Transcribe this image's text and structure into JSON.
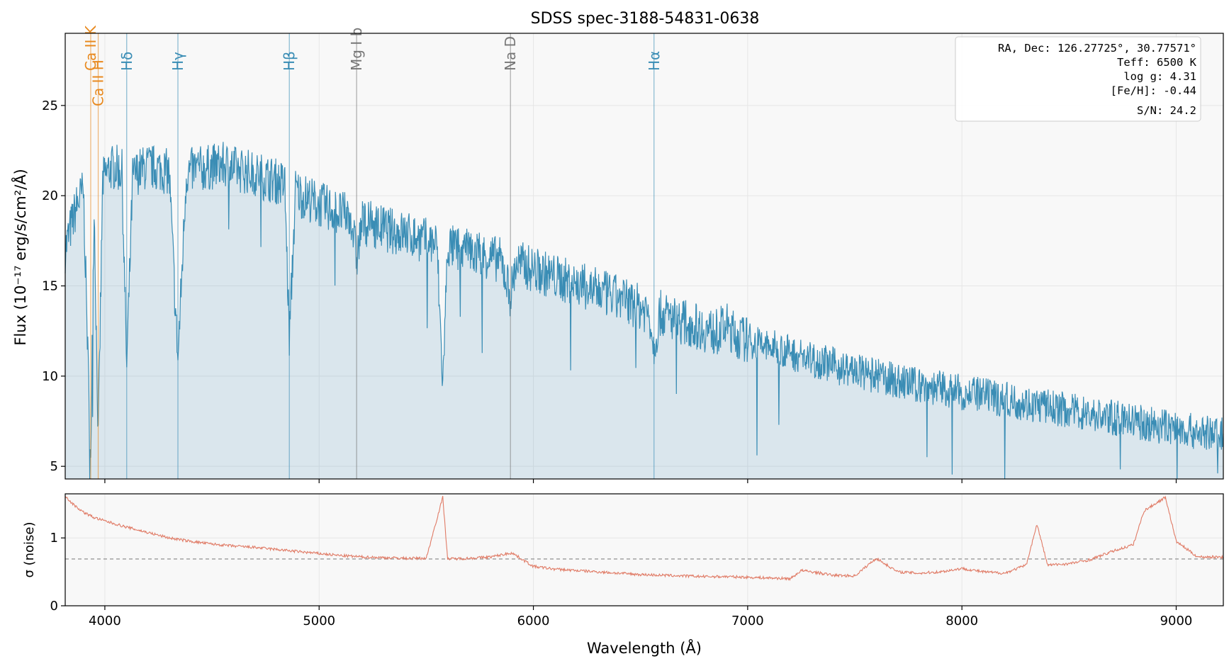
{
  "chart_data": [
    {
      "type": "line",
      "title": "SDSS spec-3188-54831-0638",
      "ylabel": "Flux (10⁻¹⁷ erg/s/cm²/Å)",
      "xlim": [
        3815,
        9220
      ],
      "ylim": [
        4.3,
        29.0
      ],
      "yticks": [
        5,
        10,
        15,
        20,
        25
      ],
      "grid": true,
      "series": [
        {
          "x": [
            3815,
            3840,
            3870,
            3900,
            3934,
            3950,
            3969,
            3990,
            4020,
            4050,
            4080,
            4102,
            4130,
            4160,
            4200,
            4250,
            4300,
            4341,
            4380,
            4420,
            4460,
            4500,
            4550,
            4600,
            4650,
            4700,
            4750,
            4800,
            4840,
            4861,
            4890,
            4920,
            4960,
            5000,
            5050,
            5100,
            5150,
            5175,
            5200,
            5250,
            5300,
            5350,
            5400,
            5450,
            5500,
            5550,
            5577,
            5600,
            5650,
            5700,
            5750,
            5800,
            5850,
            5893,
            5920,
            5960,
            6000,
            6050,
            6100,
            6150,
            6200,
            6250,
            6300,
            6350,
            6400,
            6450,
            6500,
            6540,
            6563,
            6590,
            6650,
            6700,
            6750,
            6800,
            6850,
            6900,
            6950,
            7000,
            7050,
            7100,
            7150,
            7200,
            7250,
            7300,
            7350,
            7400,
            7450,
            7500,
            7550,
            7600,
            7650,
            7700,
            7750,
            7800,
            7850,
            7900,
            7950,
            8000,
            8050,
            8100,
            8150,
            8200,
            8250,
            8300,
            8350,
            8400,
            8450,
            8500,
            8550,
            8600,
            8650,
            8700,
            8750,
            8800,
            8850,
            8900,
            8950,
            9000,
            9050,
            9100,
            9150,
            9200,
            9220
          ],
          "y": [
            17.0,
            18.2,
            19.5,
            20.3,
            5.5,
            19.5,
            6.5,
            20.8,
            21.5,
            21.6,
            21.3,
            10.5,
            21.0,
            21.4,
            21.6,
            21.5,
            21.3,
            10.8,
            21.2,
            21.5,
            21.5,
            21.6,
            21.7,
            21.5,
            21.4,
            21.2,
            21.0,
            20.8,
            20.6,
            12.0,
            20.3,
            20.0,
            19.8,
            19.5,
            19.3,
            19.0,
            18.8,
            16.5,
            18.5,
            18.4,
            18.2,
            18.0,
            17.9,
            17.7,
            17.5,
            17.3,
            9.5,
            17.2,
            17.0,
            16.9,
            16.8,
            16.6,
            16.4,
            14.5,
            16.3,
            16.1,
            15.9,
            15.7,
            15.5,
            15.3,
            15.1,
            14.9,
            14.7,
            14.5,
            14.3,
            14.1,
            13.8,
            13.6,
            11.5,
            13.5,
            13.2,
            13.0,
            12.8,
            12.6,
            12.4,
            12.8,
            12.2,
            12.0,
            11.8,
            11.6,
            11.5,
            11.3,
            11.1,
            10.9,
            10.8,
            10.6,
            10.4,
            10.3,
            10.1,
            10.0,
            9.9,
            9.7,
            9.6,
            9.5,
            9.4,
            9.3,
            9.2,
            9.1,
            9.0,
            8.9,
            8.8,
            8.7,
            8.6,
            8.5,
            8.4,
            8.3,
            8.2,
            8.1,
            8.0,
            7.9,
            7.8,
            7.7,
            7.6,
            7.5,
            7.4,
            7.3,
            7.2,
            7.1,
            7.0,
            6.9,
            6.8,
            6.8,
            6.8
          ]
        }
      ],
      "lines": [
        {
          "label": "Ca II K",
          "x": 3934,
          "group": "caii"
        },
        {
          "label": "Ca II H",
          "x": 3969,
          "group": "caii"
        },
        {
          "label": "Hδ",
          "x": 4102,
          "group": "balmer"
        },
        {
          "label": "Hγ",
          "x": 4341,
          "group": "balmer"
        },
        {
          "label": "Hβ",
          "x": 4861,
          "group": "balmer"
        },
        {
          "label": "Mg I b",
          "x": 5175,
          "group": "metal"
        },
        {
          "label": "Na D",
          "x": 5893,
          "group": "metal"
        },
        {
          "label": "Hα",
          "x": 6563,
          "group": "balmer"
        }
      ],
      "annotation": [
        "RA, Dec: 126.27725°, 30.77571°",
        "Teff: 6500 K",
        "log g: 4.31",
        "[Fe/H]: -0.44",
        "S/N: 24.2"
      ],
      "annotation_placement": "top-right"
    },
    {
      "type": "line",
      "xlabel": "Wavelength (Å)",
      "ylabel": "σ (noise)",
      "xlim": [
        3815,
        9220
      ],
      "ylim": [
        0,
        1.65
      ],
      "yticks": [
        0,
        1
      ],
      "xticks": [
        4000,
        5000,
        6000,
        7000,
        8000,
        9000
      ],
      "reference_line": 0.69,
      "grid": true,
      "series": [
        {
          "x": [
            3815,
            3850,
            3900,
            3950,
            4000,
            4100,
            4200,
            4300,
            4400,
            4500,
            4600,
            4700,
            4800,
            4900,
            5000,
            5100,
            5200,
            5300,
            5400,
            5500,
            5577,
            5600,
            5700,
            5800,
            5850,
            5900,
            5950,
            6000,
            6100,
            6200,
            6300,
            6400,
            6500,
            6600,
            6700,
            6800,
            6900,
            7000,
            7100,
            7200,
            7250,
            7300,
            7400,
            7500,
            7600,
            7700,
            7800,
            7900,
            8000,
            8100,
            8200,
            8300,
            8350,
            8400,
            8500,
            8600,
            8700,
            8800,
            8850,
            8900,
            8950,
            9000,
            9100,
            9200,
            9220
          ],
          "y": [
            1.62,
            1.5,
            1.38,
            1.3,
            1.25,
            1.16,
            1.08,
            1.0,
            0.95,
            0.91,
            0.88,
            0.86,
            0.83,
            0.8,
            0.77,
            0.74,
            0.72,
            0.71,
            0.7,
            0.7,
            1.6,
            0.69,
            0.7,
            0.72,
            0.75,
            0.78,
            0.68,
            0.58,
            0.54,
            0.52,
            0.5,
            0.48,
            0.46,
            0.45,
            0.44,
            0.43,
            0.43,
            0.42,
            0.41,
            0.4,
            0.52,
            0.5,
            0.45,
            0.44,
            0.7,
            0.5,
            0.48,
            0.5,
            0.55,
            0.5,
            0.48,
            0.6,
            1.2,
            0.6,
            0.62,
            0.68,
            0.8,
            0.9,
            1.4,
            1.5,
            1.6,
            0.95,
            0.72,
            0.72,
            0.72
          ]
        }
      ]
    }
  ]
}
